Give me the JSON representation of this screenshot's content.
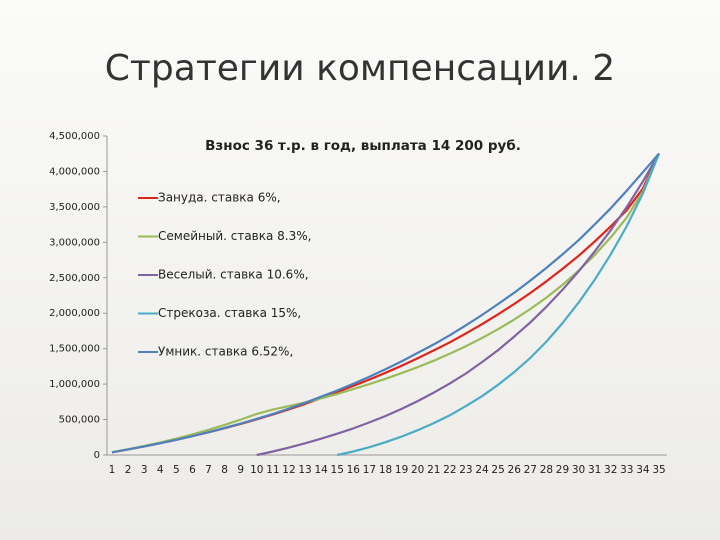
{
  "slide_title": "Стратегии компенсации. 2",
  "chart_data": {
    "type": "line",
    "title": "Взнос 36 т.р. в год, выплата 14 200 руб.",
    "categories": [
      "1",
      "2",
      "3",
      "4",
      "5",
      "6",
      "7",
      "8",
      "9",
      "10",
      "11",
      "12",
      "13",
      "14",
      "15",
      "16",
      "17",
      "18",
      "19",
      "20",
      "21",
      "22",
      "23",
      "24",
      "25",
      "26",
      "27",
      "28",
      "29",
      "30",
      "31",
      "32",
      "33",
      "34",
      "35"
    ],
    "series": [
      {
        "name": "Зануда. ставка 6%,",
        "color": "#e0241c",
        "values": [
          38000,
          79000,
          121000,
          167000,
          215000,
          266000,
          320000,
          378000,
          439000,
          503000,
          571000,
          644000,
          721000,
          802000,
          888000,
          975000,
          1065000,
          1160000,
          1260000,
          1365000,
          1475000,
          1590000,
          1715000,
          1845000,
          1985000,
          2130000,
          2285000,
          2450000,
          2625000,
          2810000,
          3010000,
          3225000,
          3455000,
          3760000,
          4252000
        ]
      },
      {
        "name": "Семейный. ставка 8.3%,",
        "color": "#9bbb59",
        "values": [
          38000,
          82000,
          128000,
          178000,
          232000,
          290000,
          355000,
          425000,
          500000,
          580000,
          640000,
          690000,
          740000,
          800000,
          860000,
          930000,
          1000000,
          1075000,
          1155000,
          1240000,
          1330000,
          1430000,
          1535000,
          1650000,
          1775000,
          1910000,
          2060000,
          2220000,
          2400000,
          2600000,
          2820000,
          3070000,
          3350000,
          3720000,
          4252000
        ]
      },
      {
        "name": "Веселый. ставка 10.6%,",
        "color": "#8064a2",
        "values": [
          null,
          null,
          null,
          null,
          null,
          null,
          null,
          null,
          null,
          0,
          50000,
          105000,
          165000,
          230000,
          300000,
          375000,
          460000,
          550000,
          650000,
          760000,
          880000,
          1010000,
          1150000,
          1310000,
          1480000,
          1670000,
          1870000,
          2090000,
          2330000,
          2590000,
          2870000,
          3170000,
          3500000,
          3860000,
          4252000
        ]
      },
      {
        "name": "Стрекоза. ставка 15%,",
        "color": "#4bacc6",
        "values": [
          null,
          null,
          null,
          null,
          null,
          null,
          null,
          null,
          null,
          null,
          null,
          null,
          null,
          null,
          0,
          50000,
          110000,
          180000,
          260000,
          350000,
          450000,
          560000,
          690000,
          830000,
          990000,
          1170000,
          1370000,
          1600000,
          1860000,
          2150000,
          2470000,
          2830000,
          3230000,
          3690000,
          4252000
        ]
      },
      {
        "name": "Умник. ставка 6.52%,",
        "color": "#4f81bd",
        "values": [
          38000,
          79000,
          121000,
          167000,
          215000,
          266000,
          322000,
          381000,
          443000,
          510000,
          580000,
          656000,
          737000,
          822000,
          910000,
          1005000,
          1105000,
          1210000,
          1320000,
          1440000,
          1560000,
          1690000,
          1830000,
          1975000,
          2130000,
          2290000,
          2460000,
          2640000,
          2830000,
          3030000,
          3250000,
          3480000,
          3730000,
          3990000,
          4252000
        ]
      }
    ],
    "ylim": [
      0,
      4500000
    ],
    "yticks": [
      0,
      {
        "value": 500000,
        "label": "500,000"
      },
      {
        "value": 1000000,
        "label": "1,000,000"
      },
      {
        "value": 1500000,
        "label": "1,500,000"
      },
      {
        "value": 2000000,
        "label": "2,000,000"
      },
      {
        "value": 2500000,
        "label": "2,500,000"
      },
      {
        "value": 3000000,
        "label": "3,000,000"
      },
      {
        "value": 3500000,
        "label": "3,500,000"
      },
      {
        "value": 4000000,
        "label": "4,000,000"
      },
      {
        "value": 4500000,
        "label": "4,500,000"
      }
    ],
    "legend": "left",
    "grid": false
  }
}
